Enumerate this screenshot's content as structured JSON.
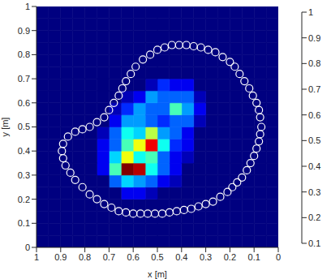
{
  "chart_data": {
    "type": "heatmap",
    "x_label": "x [m]",
    "y_label": "y [m]",
    "xlim": [
      1,
      0
    ],
    "xticks": [
      1,
      0.9,
      0.8,
      0.7,
      0.6,
      0.5,
      0.4,
      0.3,
      0.2,
      0.1,
      0
    ],
    "ylim": [
      0,
      1
    ],
    "yticks": [
      0,
      0.1,
      0.2,
      0.3,
      0.4,
      0.5,
      0.6,
      0.7,
      0.8,
      0.9,
      1
    ],
    "x_edges": [
      0,
      0.05,
      0.1,
      0.15,
      0.2,
      0.25,
      0.3,
      0.35,
      0.4,
      0.45,
      0.5,
      0.55,
      0.6,
      0.65,
      0.7,
      0.75,
      0.8,
      0.85,
      0.9,
      0.95,
      1
    ],
    "y_edges": [
      0,
      0.05,
      0.1,
      0.15,
      0.2,
      0.25,
      0.3,
      0.35,
      0.4,
      0.45,
      0.5,
      0.55,
      0.6,
      0.65,
      0.7,
      0.75,
      0.8,
      0.85,
      0.9,
      0.95,
      1
    ],
    "cells": [
      [
        0,
        0,
        0,
        0,
        0,
        0,
        0,
        0,
        0,
        0,
        0,
        0,
        0,
        0,
        0,
        0,
        0,
        0,
        0,
        0
      ],
      [
        0,
        0,
        0,
        0,
        0,
        0,
        0,
        0,
        0,
        0,
        0,
        0,
        0,
        0,
        0,
        0,
        0,
        0,
        0,
        0
      ],
      [
        0,
        0,
        0,
        0,
        0,
        0,
        0,
        0,
        0,
        0,
        0,
        0,
        0,
        0,
        0,
        0,
        0,
        0,
        0,
        0
      ],
      [
        0,
        0,
        0,
        0,
        0,
        0,
        0,
        0,
        0,
        0,
        0,
        0,
        0,
        0,
        0,
        0,
        0,
        0,
        0,
        0
      ],
      [
        0,
        0,
        0,
        0,
        0,
        0,
        0,
        0,
        0,
        0,
        0.15,
        0.2,
        0.2,
        0,
        0,
        0,
        0,
        0,
        0,
        0
      ],
      [
        0,
        0,
        0,
        0,
        0,
        0,
        0,
        0,
        0.15,
        0.2,
        0.3,
        0.35,
        0.4,
        0.3,
        0,
        0,
        0,
        0,
        0,
        0
      ],
      [
        0,
        0,
        0,
        0,
        0,
        0,
        0,
        0,
        0.2,
        0.3,
        0.45,
        0.95,
        1,
        0.5,
        0.2,
        0,
        0,
        0,
        0,
        0
      ],
      [
        0,
        0,
        0,
        0,
        0,
        0,
        0,
        0.15,
        0.2,
        0.3,
        0.5,
        0.45,
        0.65,
        0.4,
        0.2,
        0,
        0,
        0,
        0,
        0
      ],
      [
        0,
        0,
        0,
        0,
        0,
        0,
        0,
        0.2,
        0.25,
        0.45,
        0.9,
        0.65,
        0.5,
        0.3,
        0.2,
        0,
        0,
        0,
        0,
        0
      ],
      [
        0,
        0,
        0,
        0,
        0,
        0,
        0,
        0.2,
        0.3,
        0.35,
        0.6,
        0.4,
        0.45,
        0.3,
        0.15,
        0,
        0,
        0,
        0,
        0
      ],
      [
        0,
        0,
        0,
        0,
        0,
        0,
        0.15,
        0.3,
        0.3,
        0.25,
        0.3,
        0.35,
        0.35,
        0.2,
        0,
        0,
        0,
        0,
        0,
        0
      ],
      [
        0,
        0,
        0,
        0,
        0,
        0,
        0.2,
        0.35,
        0.5,
        0.3,
        0.3,
        0.35,
        0.25,
        0.15,
        0,
        0,
        0,
        0,
        0,
        0
      ],
      [
        0,
        0,
        0,
        0,
        0,
        0,
        0.15,
        0.3,
        0.3,
        0.3,
        0.35,
        0.2,
        0.15,
        0,
        0,
        0,
        0,
        0,
        0,
        0
      ],
      [
        0,
        0,
        0,
        0,
        0,
        0,
        0,
        0.2,
        0.2,
        0.25,
        0.15,
        0,
        0,
        0,
        0,
        0,
        0,
        0,
        0,
        0
      ],
      [
        0,
        0,
        0,
        0,
        0,
        0,
        0,
        0,
        0,
        0,
        0,
        0,
        0,
        0,
        0,
        0,
        0,
        0,
        0,
        0
      ],
      [
        0,
        0,
        0,
        0,
        0,
        0,
        0,
        0,
        0,
        0,
        0,
        0,
        0,
        0,
        0,
        0,
        0,
        0,
        0,
        0
      ],
      [
        0,
        0,
        0,
        0,
        0,
        0,
        0,
        0,
        0,
        0,
        0,
        0,
        0,
        0,
        0,
        0,
        0,
        0,
        0,
        0
      ],
      [
        0,
        0,
        0,
        0,
        0,
        0,
        0,
        0,
        0,
        0,
        0,
        0,
        0,
        0,
        0,
        0,
        0,
        0,
        0,
        0
      ],
      [
        0,
        0,
        0,
        0,
        0,
        0,
        0,
        0,
        0,
        0,
        0,
        0,
        0,
        0,
        0,
        0,
        0,
        0,
        0,
        0
      ],
      [
        0,
        0,
        0,
        0,
        0,
        0,
        0,
        0,
        0,
        0,
        0,
        0,
        0,
        0,
        0,
        0,
        0,
        0,
        0,
        0
      ]
    ],
    "colorbar": {
      "range": [
        0.1,
        1
      ],
      "ticks": [
        0.1,
        0.2,
        0.3,
        0.4,
        0.5,
        0.6,
        0.7,
        0.8,
        0.9,
        1
      ]
    },
    "series": [
      {
        "type": "scatter",
        "color": "#ffffff",
        "marker": "circle",
        "x": [
          0.07,
          0.075,
          0.08,
          0.09,
          0.1,
          0.115,
          0.13,
          0.15,
          0.17,
          0.19,
          0.21,
          0.24,
          0.27,
          0.3,
          0.33,
          0.36,
          0.39,
          0.42,
          0.45,
          0.48,
          0.51,
          0.54,
          0.57,
          0.6,
          0.63,
          0.66,
          0.69,
          0.72,
          0.75,
          0.78,
          0.81,
          0.84,
          0.86,
          0.88,
          0.89,
          0.895,
          0.89,
          0.87,
          0.84,
          0.81,
          0.78,
          0.75,
          0.72,
          0.7,
          0.68,
          0.66,
          0.645,
          0.63,
          0.61,
          0.59,
          0.56,
          0.53,
          0.5,
          0.47,
          0.44,
          0.41,
          0.38,
          0.35,
          0.32,
          0.29,
          0.26,
          0.23,
          0.2,
          0.18,
          0.16,
          0.14,
          0.12,
          0.105,
          0.09,
          0.08,
          0.075
        ],
        "y": [
          0.5,
          0.47,
          0.44,
          0.41,
          0.38,
          0.35,
          0.32,
          0.29,
          0.27,
          0.25,
          0.23,
          0.21,
          0.19,
          0.18,
          0.17,
          0.16,
          0.155,
          0.15,
          0.145,
          0.14,
          0.14,
          0.14,
          0.14,
          0.14,
          0.145,
          0.15,
          0.165,
          0.18,
          0.2,
          0.22,
          0.25,
          0.28,
          0.31,
          0.34,
          0.37,
          0.4,
          0.43,
          0.46,
          0.48,
          0.49,
          0.5,
          0.52,
          0.54,
          0.57,
          0.6,
          0.63,
          0.66,
          0.69,
          0.72,
          0.75,
          0.78,
          0.8,
          0.82,
          0.83,
          0.84,
          0.84,
          0.84,
          0.835,
          0.83,
          0.82,
          0.81,
          0.79,
          0.77,
          0.75,
          0.72,
          0.69,
          0.66,
          0.63,
          0.6,
          0.57,
          0.54
        ]
      }
    ]
  }
}
